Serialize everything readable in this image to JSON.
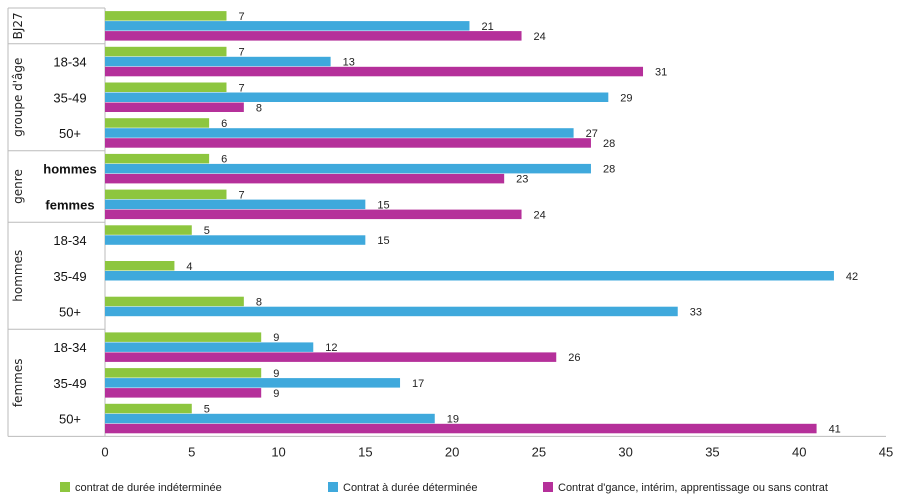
{
  "chart_data": {
    "type": "bar",
    "orientation": "horizontal",
    "xlim": [
      0,
      45
    ],
    "x_ticks": [
      0,
      5,
      10,
      15,
      20,
      25,
      30,
      35,
      40,
      45
    ],
    "grid": false,
    "legend_position": "bottom",
    "groups": [
      {
        "label": "BJ27",
        "rows": [
          {
            "label": "",
            "values": [
              7,
              21,
              24
            ]
          }
        ]
      },
      {
        "label": "groupe d'âge",
        "rows": [
          {
            "label": "18-34",
            "values": [
              7,
              13,
              31
            ]
          },
          {
            "label": "35-49",
            "values": [
              7,
              29,
              8
            ]
          },
          {
            "label": "50+",
            "values": [
              6,
              27,
              28
            ]
          }
        ]
      },
      {
        "label": "genre",
        "rows": [
          {
            "label": "hommes",
            "values": [
              6,
              28,
              23
            ]
          },
          {
            "label": "femmes",
            "values": [
              7,
              15,
              24
            ]
          }
        ]
      },
      {
        "label": "hommes",
        "rows": [
          {
            "label": "18-34",
            "values": [
              5,
              15,
              null
            ]
          },
          {
            "label": "35-49",
            "values": [
              4,
              42,
              null
            ]
          },
          {
            "label": "50+",
            "values": [
              8,
              33,
              null
            ]
          }
        ]
      },
      {
        "label": "femmes",
        "rows": [
          {
            "label": "18-34",
            "values": [
              9,
              12,
              26
            ]
          },
          {
            "label": "35-49",
            "values": [
              9,
              17,
              9
            ]
          },
          {
            "label": "50+",
            "values": [
              5,
              19,
              41
            ]
          }
        ]
      }
    ],
    "series": [
      {
        "name": "contrat de durée indéterminée",
        "color": "#8dc63f"
      },
      {
        "name": "Contrat à durée déterminée",
        "color": "#3fa9dc"
      },
      {
        "name": "Contrat d'gance, intérim, apprentissage ou sans contrat",
        "color": "#b5309a"
      }
    ]
  }
}
